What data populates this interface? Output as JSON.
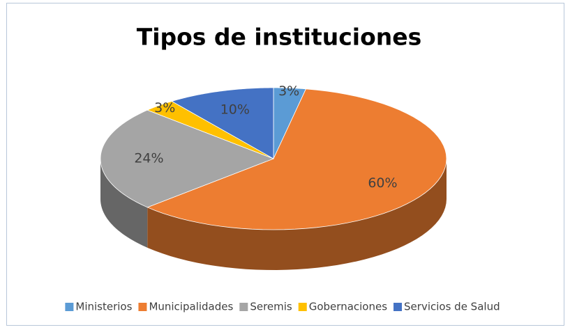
{
  "chart_data": {
    "type": "pie",
    "title": "Tipos de instituciones",
    "categories": [
      "Ministerios",
      "Municipalidades",
      "Seremis",
      "Gobernaciones",
      "Servicios de Salud"
    ],
    "values": [
      3,
      60,
      24,
      3,
      10
    ],
    "value_labels": [
      "3%",
      "60%",
      "24%",
      "3%",
      "10%"
    ],
    "colors": [
      "#5b9bd5",
      "#ed7d31",
      "#a5a5a5",
      "#ffc000",
      "#4472c4"
    ],
    "legend": "bottom"
  }
}
